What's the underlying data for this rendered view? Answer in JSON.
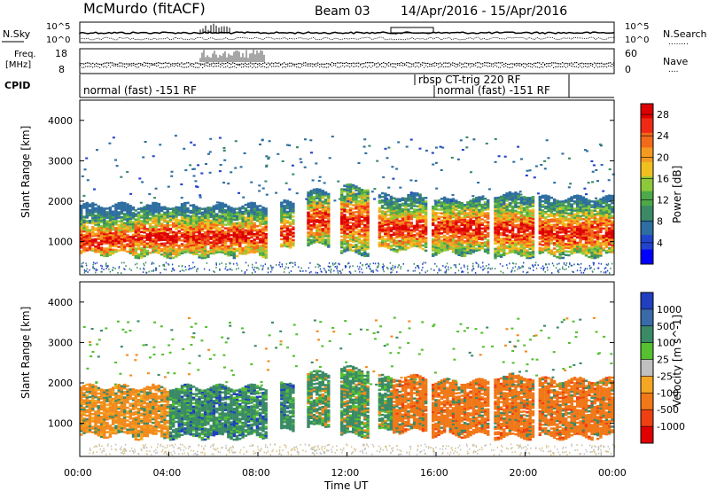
{
  "header": {
    "station": "McMurdo (fitACF)",
    "beam": "Beam 03",
    "dates": "14/Apr/2016 - 15/Apr/2016"
  },
  "noise_panel": {
    "left_label": "N.Sky",
    "right_label": "N.Search",
    "right_legend_dots": "........",
    "ticks": [
      "10^5",
      "10^0"
    ],
    "right_ticks": [
      "10^5",
      "10^0"
    ]
  },
  "freq_panel": {
    "left_label_line1": "Freq.",
    "left_label_line2": "[MHz]",
    "right_label": "Nave",
    "right_legend_dots": "....",
    "left_ticks": [
      "18",
      "8"
    ],
    "right_ticks": [
      "60",
      "0"
    ]
  },
  "cpid_panel": {
    "label": "CPID",
    "programs": [
      {
        "text": "normal (fast) -151 RF",
        "row": "lower",
        "start_hour": 0.0
      },
      {
        "text": "rbsp CT-trig 220 RF",
        "row": "upper",
        "start_hour": 15.6
      },
      {
        "text": "normal (fast) -151 RF",
        "row": "lower",
        "start_hour": 16.0
      }
    ]
  },
  "chart_data": [
    {
      "type": "heatmap",
      "name": "power",
      "ylabel": "Slant Range [km]",
      "xlim": [
        0,
        24
      ],
      "ylim": [
        180,
        4500
      ],
      "yticks": [
        1000,
        2000,
        3000,
        4000
      ],
      "colorbar": {
        "label": "Power [dB]",
        "ticks": [
          4,
          8,
          12,
          16,
          20,
          24,
          28
        ],
        "range": [
          0,
          30
        ],
        "colors": [
          "#0000ff",
          "#2244cc",
          "#2e6ea0",
          "#3a8a66",
          "#4da84a",
          "#8cc83a",
          "#f0c020",
          "#f59a20",
          "#f26a1a",
          "#ee2a15",
          "#dd0000"
        ]
      }
    },
    {
      "type": "heatmap",
      "name": "velocity",
      "ylabel": "Slant Range [km]",
      "xlim": [
        0,
        24
      ],
      "ylim": [
        180,
        4500
      ],
      "yticks": [
        1000,
        2000,
        3000,
        4000
      ],
      "colorbar": {
        "label": "Velocity [m s^-1]",
        "ticks": [
          "1000",
          "500",
          "100",
          "25",
          "-25",
          "-100",
          "-500",
          "-1000"
        ],
        "colors": [
          "#2040c0",
          "#3a6aa8",
          "#3a8a66",
          "#55c030",
          "#c0c0c0",
          "#f5a623",
          "#f07818",
          "#ee4012",
          "#e00000"
        ]
      }
    }
  ],
  "x_axis": {
    "label": "Time UT",
    "ticks": [
      "00:00",
      "04:00",
      "08:00",
      "12:00",
      "16:00",
      "20:00",
      "00:00"
    ]
  }
}
